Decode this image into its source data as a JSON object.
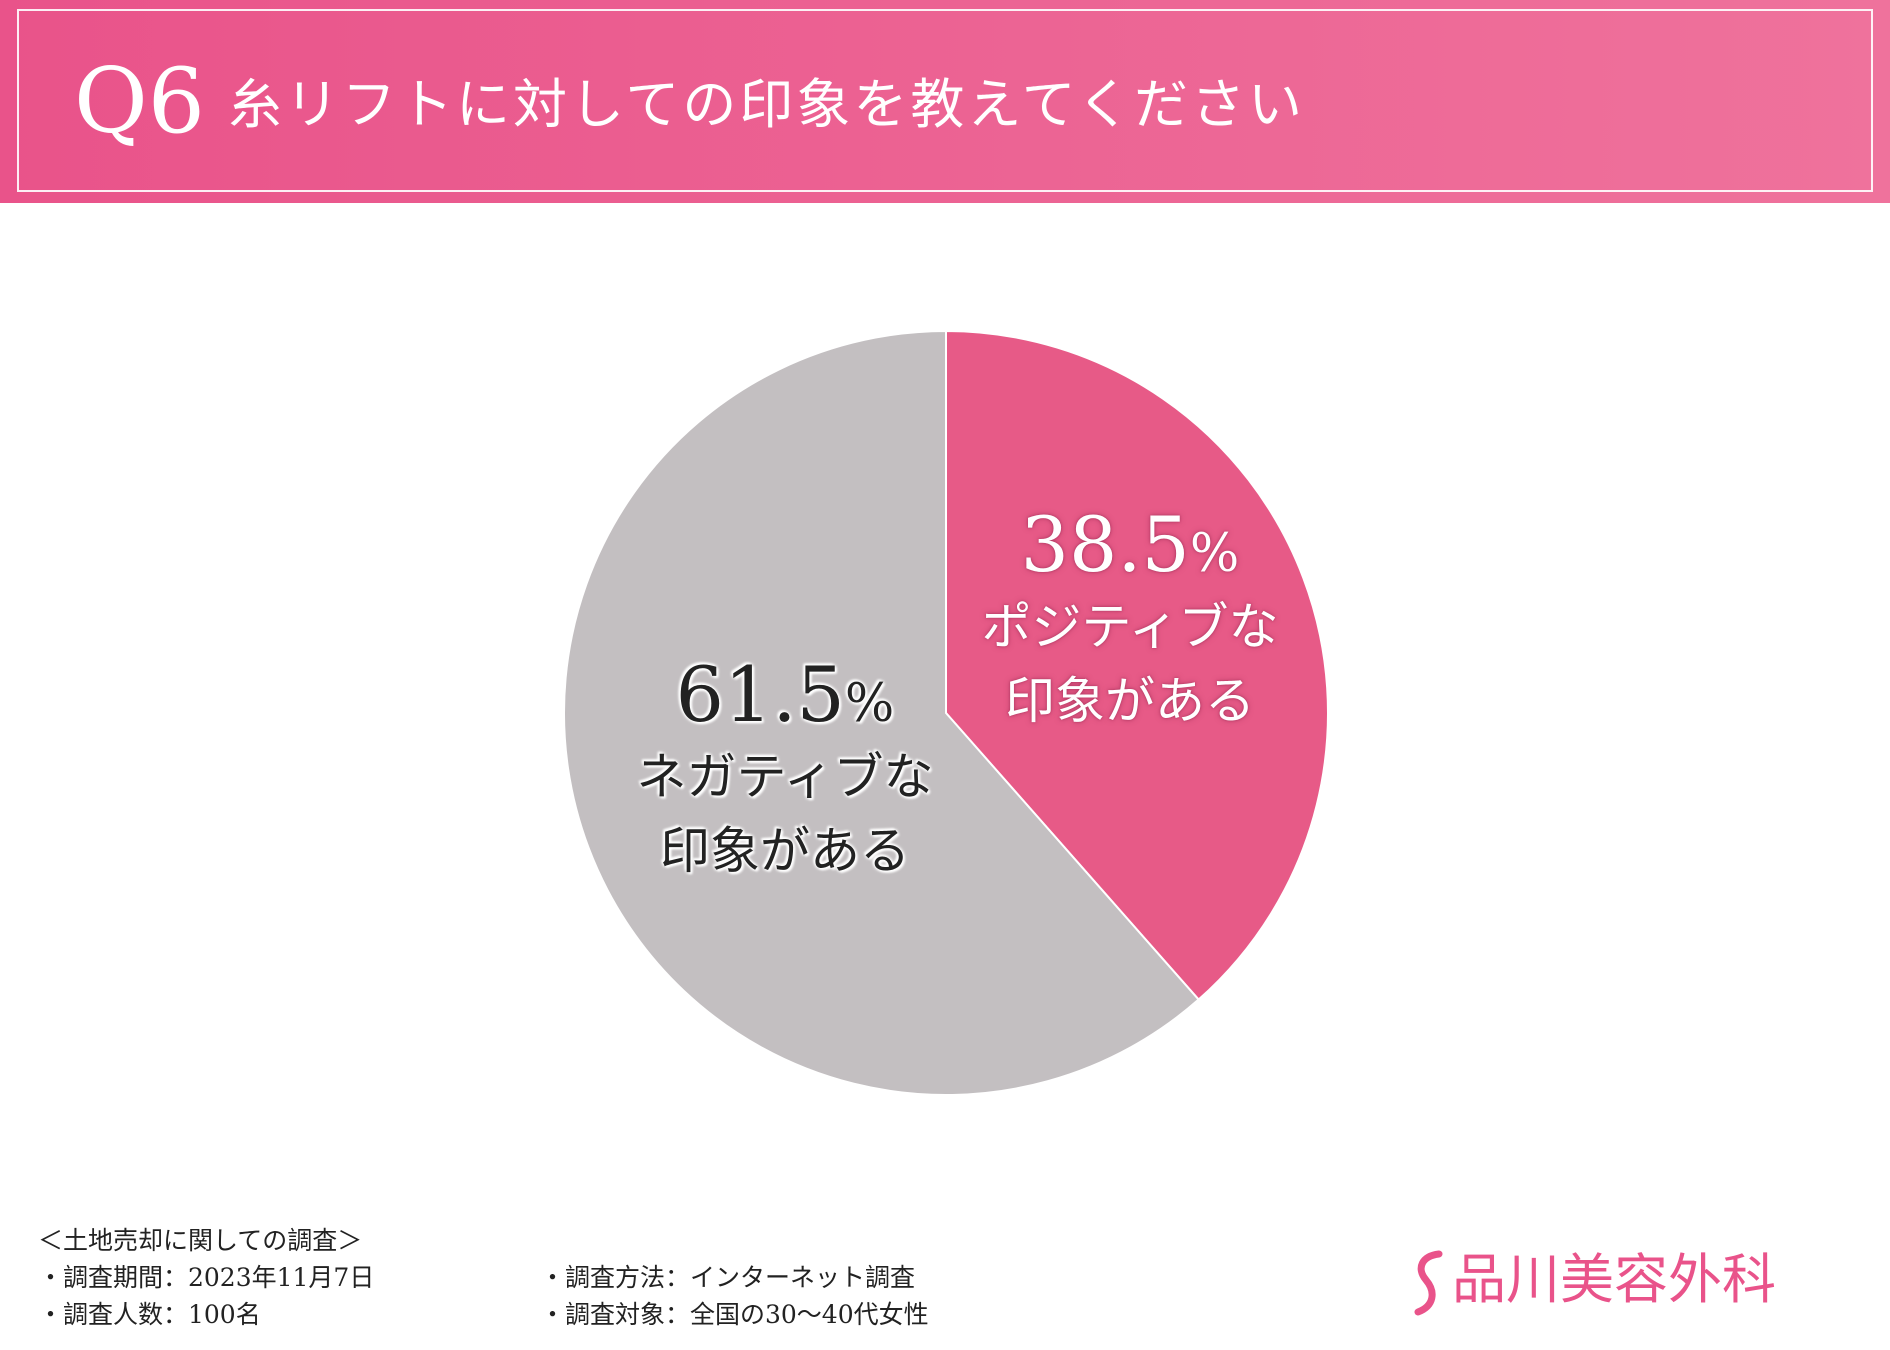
{
  "header": {
    "question_number": "Q6",
    "question_text": "糸リフトに対しての印象を教えてください"
  },
  "chart_data": {
    "type": "pie",
    "title": "",
    "slices": [
      {
        "label_lines": [
          "ポジティブな",
          "印象がある"
        ],
        "value": 38.5,
        "value_text": "38.5",
        "unit": "%",
        "color": "#e75a87"
      },
      {
        "label_lines": [
          "ネガティブな",
          "印象がある"
        ],
        "value": 61.5,
        "value_text": "61.5",
        "unit": "%",
        "color": "#c3bfc1"
      }
    ],
    "start_angle": "top",
    "direction": "clockwise",
    "legend": "none"
  },
  "footer": {
    "survey_title": "＜土地売却に関しての調査＞",
    "period": "・調査期間：2023年11月7日",
    "respondents": "・調査人数：100名",
    "method": "・調査方法：インターネット調査",
    "target": "・調査対象：全国の30〜40代女性"
  },
  "logo": {
    "icon": "s-mark-icon",
    "text": "品川美容外科",
    "color": "#e9538a"
  }
}
